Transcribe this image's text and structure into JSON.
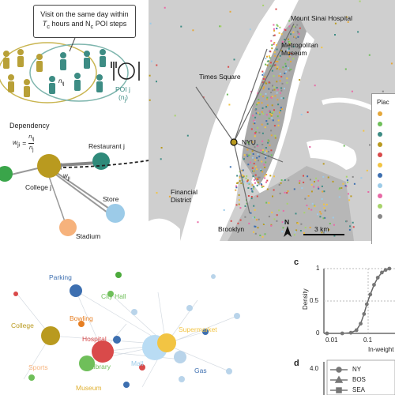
{
  "panel_a": {
    "callout_line1": "Visit on the same day within",
    "callout_line2_pre": "T",
    "callout_line2_sub1": "c",
    "callout_line2_mid": " hours and N",
    "callout_line2_sub2": "c",
    "callout_line2_post": " POI steps",
    "nij": "n",
    "nij_sub": "ij",
    "poi_label": "POI j",
    "poi_count": "(n",
    "poi_count_sub": "j",
    "poi_count_close": ")",
    "dependency_title": "Dependency",
    "dependency_formula_lhs": "w",
    "dependency_formula_lhs_sub": "ji",
    "dependency_formula_eq": "=",
    "dependency_num": "n",
    "dependency_num_sub": "ij",
    "dependency_den": "n",
    "dependency_den_sub": "j",
    "restaurant": "Restaurant j",
    "wji": "w",
    "wji_sub": "ji",
    "college": "College j",
    "store": "Store",
    "stadium": "Stadium",
    "colors": {
      "person_gold": "#b8a037",
      "person_teal": "#3d8c84",
      "node_gold": "#b99a1f",
      "node_teal": "#2f8a7a",
      "node_green": "#3aa54a",
      "node_blue": "#9ccbe8",
      "node_orange": "#f6b27c"
    }
  },
  "map": {
    "labels": {
      "mount_sinai": "Mount Sinai Hospital",
      "metropolitan": "Metropolitan\nMuseum",
      "times_square": "Times Square",
      "nyu": "NYU",
      "financial": "Financial\nDistrict",
      "brooklyn": "Brooklyn",
      "north": "N",
      "scale": "3 km"
    },
    "legend_title": "Plac"
  },
  "panel_b": {
    "labels": [
      "Parking",
      "City Hall",
      "College",
      "Bowling",
      "Hospital",
      "Supermarket",
      "Sports",
      "Library",
      "Mall",
      "Gas",
      "Museum"
    ]
  },
  "panel_c": {
    "letter": "c",
    "chart_data": {
      "type": "line",
      "xlabel": "In-weight",
      "ylabel": "Density",
      "x_scale": "log",
      "xticks": [
        "0.01",
        "0.1"
      ],
      "yticks": [
        "0",
        "0.5",
        "1"
      ],
      "ylim": [
        0,
        1
      ],
      "series": [
        {
          "values": [
            [
              0.012,
              0.0
            ],
            [
              0.03,
              0.0
            ],
            [
              0.05,
              0.01
            ],
            [
              0.07,
              0.05
            ],
            [
              0.09,
              0.15
            ],
            [
              0.11,
              0.3
            ],
            [
              0.13,
              0.45
            ],
            [
              0.16,
              0.6
            ],
            [
              0.2,
              0.75
            ],
            [
              0.25,
              0.86
            ],
            [
              0.32,
              0.94
            ],
            [
              0.4,
              0.98
            ],
            [
              0.5,
              1.0
            ]
          ]
        }
      ]
    }
  },
  "panel_d": {
    "letter": "d",
    "ytick": "4.0",
    "legend": [
      "NY",
      "BOS",
      "SEA"
    ]
  }
}
